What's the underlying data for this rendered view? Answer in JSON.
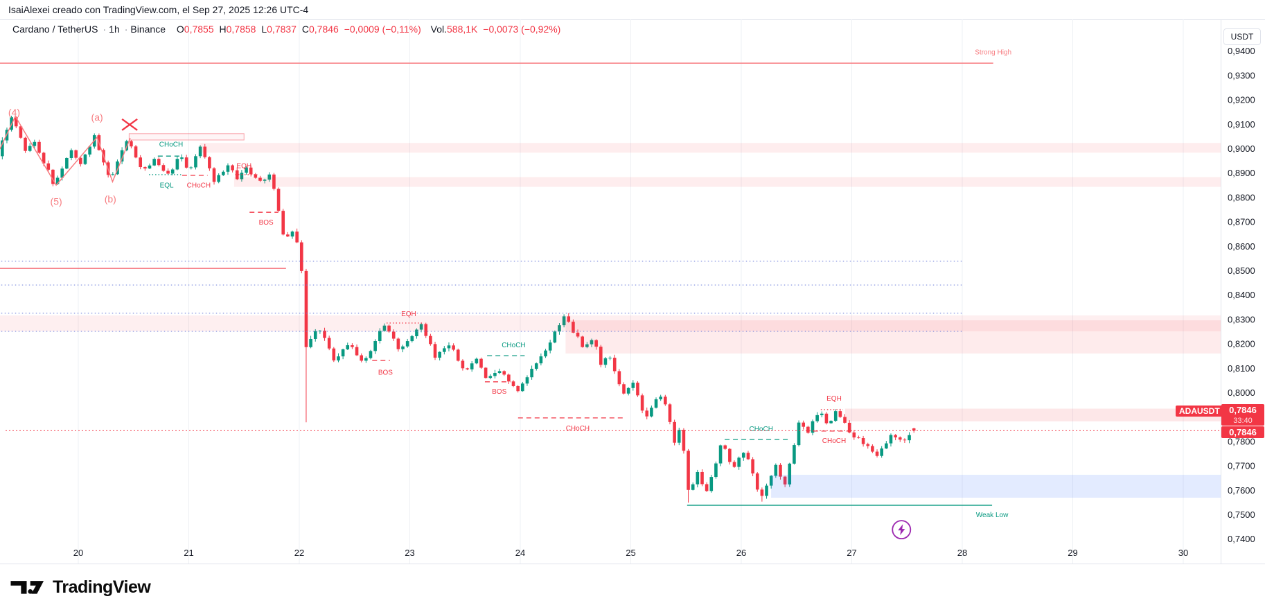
{
  "attribution": "IsaiAlexei creado con TradingView.com, el Sep 27, 2025 12:26 UTC-4",
  "header": {
    "symbol": "Cardano / TetherUS",
    "separator": "·",
    "interval": "1h",
    "exchange": "Binance",
    "o_label": "O",
    "o_value": "0,7855",
    "h_label": "H",
    "h_value": "0,7858",
    "l_label": "L",
    "l_value": "0,7837",
    "c_label": "C",
    "c_value": "0,7846",
    "change": "−0,0009 (−0,11%)",
    "volume_label": "Vol.",
    "volume_value": "588,1K",
    "volume_change": "−0,0073 (−0,92%)"
  },
  "price_axis": {
    "currency": "USDT",
    "ticks": [
      {
        "label": "0,9400",
        "price": 0.94
      },
      {
        "label": "0,9300",
        "price": 0.93
      },
      {
        "label": "0,9200",
        "price": 0.92
      },
      {
        "label": "0,9100",
        "price": 0.91
      },
      {
        "label": "0,9000",
        "price": 0.9
      },
      {
        "label": "0,8900",
        "price": 0.89
      },
      {
        "label": "0,8800",
        "price": 0.88
      },
      {
        "label": "0,8700",
        "price": 0.87
      },
      {
        "label": "0,8600",
        "price": 0.86
      },
      {
        "label": "0,8500",
        "price": 0.85
      },
      {
        "label": "0,8400",
        "price": 0.84
      },
      {
        "label": "0,8300",
        "price": 0.83
      },
      {
        "label": "0,8200",
        "price": 0.82
      },
      {
        "label": "0,8100",
        "price": 0.81
      },
      {
        "label": "0,8000",
        "price": 0.8
      },
      {
        "label": "0,7900",
        "price": 0.79
      },
      {
        "label": "0,7800",
        "price": 0.78
      },
      {
        "label": "0,7700",
        "price": 0.77
      },
      {
        "label": "0,7600",
        "price": 0.76
      },
      {
        "label": "0,7500",
        "price": 0.75
      },
      {
        "label": "0,7400",
        "price": 0.74
      }
    ]
  },
  "time_axis": {
    "labels": [
      {
        "label": "20",
        "day": 20
      },
      {
        "label": "21",
        "day": 21
      },
      {
        "label": "22",
        "day": 22
      },
      {
        "label": "23",
        "day": 23
      },
      {
        "label": "24",
        "day": 24
      },
      {
        "label": "25",
        "day": 25
      },
      {
        "label": "26",
        "day": 26
      },
      {
        "label": "27",
        "day": 27
      },
      {
        "label": "28",
        "day": 28
      },
      {
        "label": "29",
        "day": 29
      },
      {
        "label": "30",
        "day": 30
      }
    ]
  },
  "badges": {
    "symbol_label": "ADAUSDT",
    "last_price": "0,7846",
    "countdown": "33:40",
    "line_price": "0,7846"
  },
  "footer": {
    "brand": "TradingView"
  },
  "colors": {
    "up": "#089981",
    "down": "#f23645",
    "teal": "#089981",
    "red": "#f23645",
    "salmon": "#f77c80",
    "blue_dotted": "#6476d9",
    "grid": "#eef0f4",
    "badge": "#f23645",
    "purple": "#9c27b0",
    "axis_text": "#131722"
  },
  "chart_data": {
    "type": "candlestick",
    "symbol": "ADAUSDT",
    "interval": "1h",
    "exchange": "Binance",
    "last_candle": {
      "open": 0.7855,
      "high": 0.7858,
      "low": 0.7837,
      "close": 0.7846
    },
    "current_price": 0.7846,
    "x_domain_days": [
      19.2917,
      30.34
    ],
    "y_domain_price": [
      0.735,
      0.945
    ],
    "candles_start_day": 19.2917,
    "candles_end_day": 27.5833,
    "swings": [
      [
        19.2917,
        0.898
      ],
      [
        19.43,
        0.9136
      ],
      [
        19.55,
        0.899
      ],
      [
        19.62,
        0.904
      ],
      [
        19.8,
        0.8855
      ],
      [
        19.95,
        0.8995
      ],
      [
        20.05,
        0.894
      ],
      [
        20.17,
        0.9051
      ],
      [
        20.31,
        0.8869
      ],
      [
        20.47,
        0.9048
      ],
      [
        20.6,
        0.891
      ],
      [
        20.72,
        0.8962
      ],
      [
        20.82,
        0.889
      ],
      [
        20.95,
        0.8972
      ],
      [
        21.02,
        0.89
      ],
      [
        21.13,
        0.9015
      ],
      [
        21.25,
        0.8865
      ],
      [
        21.37,
        0.8935
      ],
      [
        21.46,
        0.8885
      ],
      [
        21.55,
        0.893
      ],
      [
        21.65,
        0.8855
      ],
      [
        21.75,
        0.89
      ],
      [
        21.8,
        0.882
      ],
      [
        21.88,
        0.864
      ],
      [
        21.98,
        0.8665
      ],
      [
        22.04,
        0.852
      ],
      [
        22.08,
        0.8185
      ],
      [
        22.2,
        0.827
      ],
      [
        22.33,
        0.814
      ],
      [
        22.48,
        0.82
      ],
      [
        22.6,
        0.812
      ],
      [
        22.79,
        0.8285
      ],
      [
        22.92,
        0.818
      ],
      [
        23.12,
        0.828
      ],
      [
        23.25,
        0.815
      ],
      [
        23.38,
        0.82
      ],
      [
        23.52,
        0.809
      ],
      [
        23.62,
        0.814
      ],
      [
        23.72,
        0.806
      ],
      [
        23.82,
        0.81
      ],
      [
        23.92,
        0.804
      ],
      [
        24.0,
        0.8005
      ],
      [
        24.1,
        0.808
      ],
      [
        24.18,
        0.812
      ],
      [
        24.42,
        0.8315
      ],
      [
        24.6,
        0.818
      ],
      [
        24.68,
        0.823
      ],
      [
        24.75,
        0.812
      ],
      [
        24.82,
        0.816
      ],
      [
        24.95,
        0.799
      ],
      [
        25.05,
        0.804
      ],
      [
        25.15,
        0.79
      ],
      [
        25.25,
        0.7965
      ],
      [
        25.32,
        0.799
      ],
      [
        25.42,
        0.778
      ],
      [
        25.47,
        0.787
      ],
      [
        25.55,
        0.758
      ],
      [
        25.63,
        0.768
      ],
      [
        25.7,
        0.759
      ],
      [
        25.78,
        0.77
      ],
      [
        25.84,
        0.78
      ],
      [
        25.95,
        0.769
      ],
      [
        26.05,
        0.777
      ],
      [
        26.2,
        0.7565
      ],
      [
        26.33,
        0.77
      ],
      [
        26.42,
        0.763
      ],
      [
        26.55,
        0.789
      ],
      [
        26.63,
        0.784
      ],
      [
        26.72,
        0.793
      ],
      [
        26.8,
        0.787
      ],
      [
        26.88,
        0.7925
      ],
      [
        27.0,
        0.784
      ],
      [
        27.1,
        0.78
      ],
      [
        27.25,
        0.7745
      ],
      [
        27.4,
        0.7835
      ],
      [
        27.48,
        0.779
      ],
      [
        27.5833,
        0.7846
      ]
    ],
    "special_wicks": [
      {
        "day": 22.06,
        "low": 0.788
      },
      {
        "day": 25.54,
        "low": 0.7551
      },
      {
        "day": 26.19,
        "low": 0.7555
      }
    ],
    "zones": [
      {
        "name": "supply-zone-0900",
        "day_start": 21.1,
        "day_end": 30.34,
        "price_top": 0.9025,
        "price_bottom": 0.8985,
        "color": "rgba(242,54,69,0.09)"
      },
      {
        "name": "supply-zone-0885",
        "day_start": 21.41,
        "day_end": 30.34,
        "price_top": 0.8885,
        "price_bottom": 0.8845,
        "color": "rgba(242,54,69,0.09)"
      },
      {
        "name": "supply-band-0830",
        "day_start": 19.24,
        "day_end": 30.34,
        "price_top": 0.8318,
        "price_bottom": 0.8253,
        "color": "rgba(242,54,69,0.08)"
      },
      {
        "name": "supply-zone-0825",
        "day_start": 24.41,
        "day_end": 30.34,
        "price_top": 0.8298,
        "price_bottom": 0.8162,
        "color": "rgba(242,54,69,0.10)"
      },
      {
        "name": "supply-zone-0790",
        "day_start": 26.94,
        "day_end": 30.34,
        "price_top": 0.7936,
        "price_bottom": 0.7884,
        "color": "rgba(242,54,69,0.12)"
      },
      {
        "name": "demand-zone-0760",
        "day_start": 26.27,
        "day_end": 30.34,
        "price_top": 0.7665,
        "price_bottom": 0.7571,
        "color": "rgba(41,98,255,0.13)"
      }
    ],
    "outlined_box": {
      "day_start": 20.46,
      "day_end": 21.5,
      "price_top": 0.9063,
      "price_bottom": 0.9037,
      "stroke": "rgba(242,54,69,0.45)",
      "fill": "rgba(242,54,69,0.05)"
    },
    "hlines": [
      {
        "name": "strong-high-line",
        "price": 0.9352,
        "day_start": 19.24,
        "day_end": 28.28,
        "color": "#f77c80",
        "width": 1.5,
        "label": "Strong High",
        "label_day": 28.28,
        "label_price": 0.9396,
        "label_color": "#f77c80"
      },
      {
        "name": "weak-low-line",
        "price": 0.754,
        "day_start": 25.51,
        "day_end": 28.27,
        "color": "#089981",
        "width": 1.5,
        "label": "Weak Low",
        "label_day": 28.27,
        "label_price": 0.75,
        "label_color": "#089981"
      },
      {
        "name": "old-support-line",
        "price": 0.8511,
        "day_start": 19.24,
        "day_end": 21.88,
        "color": "#f23645",
        "width": 1,
        "label": "",
        "label_day": 0,
        "label_price": 0,
        "label_color": "#f23645"
      }
    ],
    "dotted_levels": [
      {
        "price": 0.854,
        "day_start": 19.24,
        "day_end": 28.0
      },
      {
        "price": 0.8443,
        "day_start": 19.24,
        "day_end": 28.0
      },
      {
        "price": 0.8327,
        "day_start": 19.24,
        "day_end": 28.0
      },
      {
        "price": 0.8253,
        "day_start": 19.24,
        "day_end": 28.0
      }
    ],
    "segments": [
      {
        "price": 0.8971,
        "day_start": 20.72,
        "day_end": 20.92,
        "color": "teal",
        "style": "dashed"
      },
      {
        "price": 0.8895,
        "day_start": 20.64,
        "day_end": 20.93,
        "color": "teal",
        "style": "dotted"
      },
      {
        "price": 0.8892,
        "day_start": 20.94,
        "day_end": 21.17,
        "color": "red",
        "style": "dashed"
      },
      {
        "price": 0.8895,
        "day_start": 21.42,
        "day_end": 21.62,
        "color": "red",
        "style": "dotted"
      },
      {
        "price": 0.8741,
        "day_start": 21.55,
        "day_end": 21.81,
        "color": "red",
        "style": "dashed"
      },
      {
        "price": 0.8134,
        "day_start": 22.66,
        "day_end": 22.82,
        "color": "red",
        "style": "dashed"
      },
      {
        "price": 0.8287,
        "day_start": 22.79,
        "day_end": 23.12,
        "color": "red",
        "style": "dotted"
      },
      {
        "price": 0.8153,
        "day_start": 23.7,
        "day_end": 24.04,
        "color": "teal",
        "style": "dashed"
      },
      {
        "price": 0.8046,
        "day_start": 23.68,
        "day_end": 23.91,
        "color": "red",
        "style": "dashed"
      },
      {
        "price": 0.7898,
        "day_start": 23.98,
        "day_end": 24.93,
        "color": "red",
        "style": "dashed"
      },
      {
        "price": 0.781,
        "day_start": 25.85,
        "day_end": 26.44,
        "color": "teal",
        "style": "dashed"
      },
      {
        "price": 0.7844,
        "day_start": 26.65,
        "day_end": 27.02,
        "color": "red",
        "style": "dashed"
      },
      {
        "price": 0.7932,
        "day_start": 26.72,
        "day_end": 26.92,
        "color": "red",
        "style": "dotted"
      }
    ],
    "price_line": {
      "price": 0.7846,
      "color": "#f23645",
      "style": "dotted"
    },
    "labels": [
      {
        "text": "(4)",
        "day": 19.42,
        "price": 0.915,
        "color": "#f77c80",
        "size": 14
      },
      {
        "text": "(5)",
        "day": 19.8,
        "price": 0.8785,
        "color": "#f77c80",
        "size": 14
      },
      {
        "text": "(a)",
        "day": 20.17,
        "price": 0.913,
        "color": "#f77c80",
        "size": 14
      },
      {
        "text": "(b)",
        "day": 20.29,
        "price": 0.8795,
        "color": "#f77c80",
        "size": 14
      },
      {
        "text": "CHoCH",
        "day": 20.84,
        "price": 0.902,
        "color": "#089981",
        "size": 10
      },
      {
        "text": "EQL",
        "day": 20.8,
        "price": 0.8852,
        "color": "#089981",
        "size": 10
      },
      {
        "text": "CHoCH",
        "day": 21.09,
        "price": 0.8852,
        "color": "#f23645",
        "size": 10
      },
      {
        "text": "EQH",
        "day": 21.5,
        "price": 0.8932,
        "color": "#f23645",
        "size": 10
      },
      {
        "text": "BOS",
        "day": 21.7,
        "price": 0.87,
        "color": "#f23645",
        "size": 10
      },
      {
        "text": "BOS",
        "day": 22.78,
        "price": 0.8085,
        "color": "#f23645",
        "size": 10
      },
      {
        "text": "EQH",
        "day": 22.99,
        "price": 0.8325,
        "color": "#f23645",
        "size": 10
      },
      {
        "text": "CHoCH",
        "day": 23.94,
        "price": 0.8197,
        "color": "#089981",
        "size": 10
      },
      {
        "text": "BOS",
        "day": 23.81,
        "price": 0.8007,
        "color": "#f23645",
        "size": 10
      },
      {
        "text": "CHoCH",
        "day": 24.52,
        "price": 0.7857,
        "color": "#f23645",
        "size": 10
      },
      {
        "text": "CHoCH",
        "day": 26.18,
        "price": 0.7853,
        "color": "#089981",
        "size": 10
      },
      {
        "text": "EQH",
        "day": 26.84,
        "price": 0.7978,
        "color": "#f23645",
        "size": 10
      },
      {
        "text": "CHoCH",
        "day": 26.84,
        "price": 0.7805,
        "color": "#f23645",
        "size": 10
      }
    ],
    "zigzag": {
      "color": "#f77c80",
      "points": [
        [
          19.29,
          0.9
        ],
        [
          19.43,
          0.9134
        ],
        [
          19.8,
          0.8852
        ],
        [
          20.17,
          0.9048
        ],
        [
          20.31,
          0.8866
        ],
        [
          20.47,
          0.9045
        ]
      ]
    },
    "x_mark": {
      "day": 20.465,
      "price": 0.91,
      "color": "#f23645"
    },
    "lightning_icon": {
      "day": 27.45,
      "price": 0.744,
      "color": "#9c27b0"
    }
  }
}
